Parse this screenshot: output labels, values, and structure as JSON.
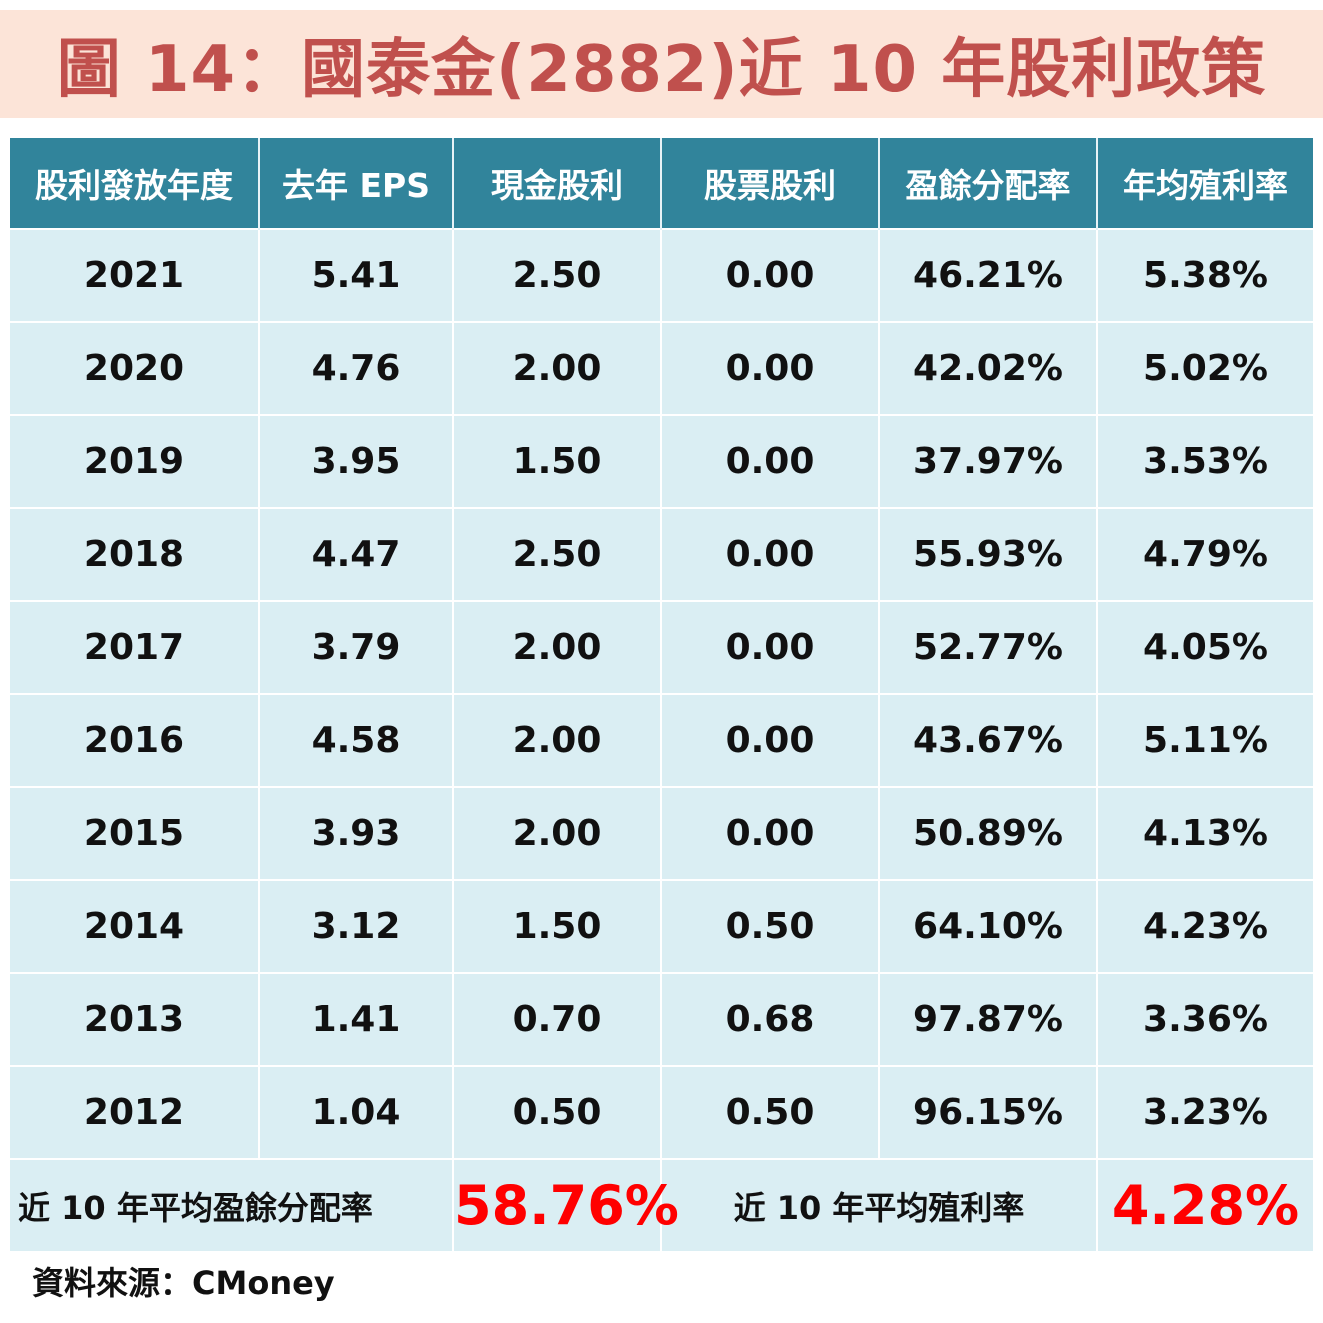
{
  "title": "圖 14：國泰金(2882)近 10 年股利政策",
  "chart_data": {
    "type": "table",
    "title": "圖 14：國泰金(2882)近 10 年股利政策",
    "columns": [
      "股利發放年度",
      "去年 EPS",
      "現金股利",
      "股票股利",
      "盈餘分配率",
      "年均殖利率"
    ],
    "rows": [
      [
        "2021",
        "5.41",
        "2.50",
        "0.00",
        "46.21%",
        "5.38%"
      ],
      [
        "2020",
        "4.76",
        "2.00",
        "0.00",
        "42.02%",
        "5.02%"
      ],
      [
        "2019",
        "3.95",
        "1.50",
        "0.00",
        "37.97%",
        "3.53%"
      ],
      [
        "2018",
        "4.47",
        "2.50",
        "0.00",
        "55.93%",
        "4.79%"
      ],
      [
        "2017",
        "3.79",
        "2.00",
        "0.00",
        "52.77%",
        "4.05%"
      ],
      [
        "2016",
        "4.58",
        "2.00",
        "0.00",
        "43.67%",
        "5.11%"
      ],
      [
        "2015",
        "3.93",
        "2.00",
        "0.00",
        "50.89%",
        "4.13%"
      ],
      [
        "2014",
        "3.12",
        "1.50",
        "0.50",
        "64.10%",
        "4.23%"
      ],
      [
        "2013",
        "1.41",
        "0.70",
        "0.68",
        "97.87%",
        "3.36%"
      ],
      [
        "2012",
        "1.04",
        "0.50",
        "0.50",
        "96.15%",
        "3.23%"
      ]
    ],
    "summary": {
      "avg_payout_label": "近 10 年平均盈餘分配率",
      "avg_payout_value": "58.76%",
      "avg_yield_label": "近 10 年平均殖利率",
      "avg_yield_value": "4.28%"
    }
  },
  "source": "資料來源：CMoney",
  "colors": {
    "title_text": "#c0504d",
    "title_bg": "#fce4d8",
    "header_bg": "#31849b",
    "row_bg": "#daeef3",
    "highlight": "#ff0000"
  }
}
